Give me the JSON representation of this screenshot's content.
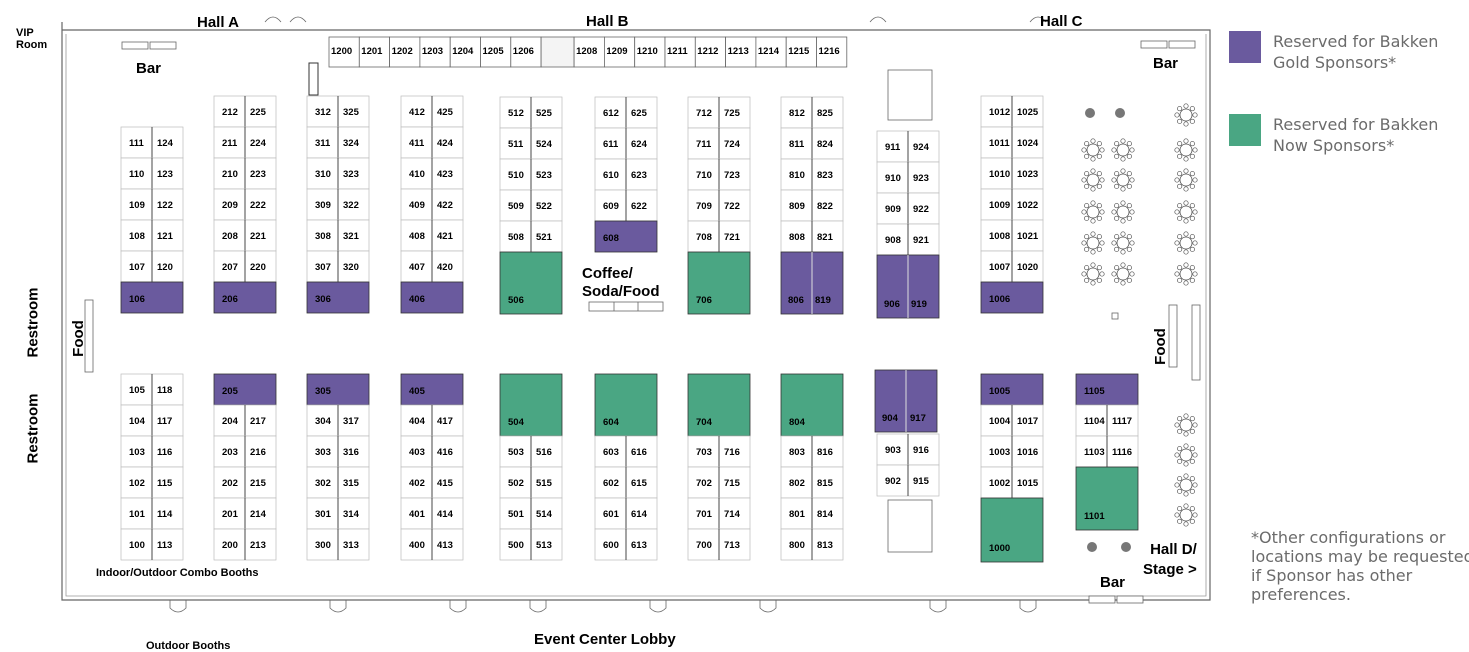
{
  "colors": {
    "gold": "#6a5a9e",
    "now": "#4aa683",
    "booth_fill": "#ffffff",
    "line": "#555555",
    "legend_text": "#6b6b6b"
  },
  "labels": {
    "hall_a": "Hall A",
    "hall_b": "Hall B",
    "hall_c": "Hall C",
    "vip_room": "VIP\nRoom",
    "bar_top_left": "Bar",
    "bar_top_right": "Bar",
    "bar_bottom": "Bar",
    "restroom_upper": "Restroom",
    "restroom_lower": "Restroom",
    "food_left": "Food",
    "food_right": "Food",
    "coffee": "Coffee/\nSoda/Food",
    "combo_booths": "Indoor/Outdoor Combo Booths",
    "outdoor_booths": "Outdoor Booths",
    "lobby": "Event Center Lobby",
    "hall_d": "Hall D/\nStage >"
  },
  "legend": {
    "gold": "Reserved for Bakken Gold Sponsors*",
    "now": "Reserved for Bakken Now Sponsors*",
    "note": "*Other configurations or locations may be requested if Sponsor has other preferences."
  },
  "hall_b_booths": [
    "1200",
    "1201",
    "1202",
    "1203",
    "1204",
    "1205",
    "1206",
    "1208",
    "1209",
    "1210",
    "1211",
    "1212",
    "1213",
    "1214",
    "1215",
    "1216"
  ],
  "booth_columns": [
    {
      "upper": [
        [
          "111",
          "124"
        ],
        [
          "110",
          "123"
        ],
        [
          "109",
          "122"
        ],
        [
          "108",
          "121"
        ],
        [
          "107",
          "120"
        ]
      ],
      "upper_gold": "106",
      "lower_gold_or_pair": [
        "105",
        "118"
      ],
      "lower": [
        [
          "104",
          "117"
        ],
        [
          "103",
          "116"
        ],
        [
          "102",
          "115"
        ],
        [
          "101",
          "114"
        ],
        [
          "100",
          "113"
        ]
      ]
    },
    {
      "upper": [
        [
          "212",
          "225"
        ],
        [
          "211",
          "224"
        ],
        [
          "210",
          "223"
        ],
        [
          "209",
          "222"
        ],
        [
          "208",
          "221"
        ],
        [
          "207",
          "220"
        ]
      ],
      "upper_gold": "206",
      "lower_gold": "205",
      "lower": [
        [
          "204",
          "217"
        ],
        [
          "203",
          "216"
        ],
        [
          "202",
          "215"
        ],
        [
          "201",
          "214"
        ],
        [
          "200",
          "213"
        ]
      ]
    },
    {
      "upper": [
        [
          "312",
          "325"
        ],
        [
          "311",
          "324"
        ],
        [
          "310",
          "323"
        ],
        [
          "309",
          "322"
        ],
        [
          "308",
          "321"
        ],
        [
          "307",
          "320"
        ]
      ],
      "upper_gold": "306",
      "lower_gold": "305",
      "lower": [
        [
          "304",
          "317"
        ],
        [
          "303",
          "316"
        ],
        [
          "302",
          "315"
        ],
        [
          "301",
          "314"
        ],
        [
          "300",
          "313"
        ]
      ]
    },
    {
      "upper": [
        [
          "412",
          "425"
        ],
        [
          "411",
          "424"
        ],
        [
          "410",
          "423"
        ],
        [
          "409",
          "422"
        ],
        [
          "408",
          "421"
        ],
        [
          "407",
          "420"
        ]
      ],
      "upper_gold": "406",
      "lower_gold": "405",
      "lower": [
        [
          "404",
          "417"
        ],
        [
          "403",
          "416"
        ],
        [
          "402",
          "415"
        ],
        [
          "401",
          "414"
        ],
        [
          "400",
          "413"
        ]
      ]
    },
    {
      "upper": [
        [
          "512",
          "525"
        ],
        [
          "511",
          "524"
        ],
        [
          "510",
          "523"
        ],
        [
          "509",
          "522"
        ],
        [
          "508",
          "521"
        ]
      ],
      "upper_now": "506",
      "lower_now": "504",
      "lower": [
        [
          "503",
          "516"
        ],
        [
          "502",
          "515"
        ],
        [
          "501",
          "514"
        ],
        [
          "500",
          "513"
        ]
      ]
    },
    {
      "upper": [
        [
          "612",
          "625"
        ],
        [
          "611",
          "624"
        ],
        [
          "610",
          "623"
        ],
        [
          "609",
          "622"
        ]
      ],
      "upper_gold": "608",
      "lower_now": "604",
      "lower": [
        [
          "603",
          "616"
        ],
        [
          "602",
          "615"
        ],
        [
          "601",
          "614"
        ],
        [
          "600",
          "613"
        ]
      ]
    },
    {
      "upper": [
        [
          "712",
          "725"
        ],
        [
          "711",
          "724"
        ],
        [
          "710",
          "723"
        ],
        [
          "709",
          "722"
        ],
        [
          "708",
          "721"
        ]
      ],
      "upper_now": "706",
      "lower_now": "704",
      "lower": [
        [
          "703",
          "716"
        ],
        [
          "702",
          "715"
        ],
        [
          "701",
          "714"
        ],
        [
          "700",
          "713"
        ]
      ]
    },
    {
      "upper": [
        [
          "812",
          "825"
        ],
        [
          "811",
          "824"
        ],
        [
          "810",
          "823"
        ],
        [
          "809",
          "822"
        ],
        [
          "808",
          "821"
        ]
      ],
      "upper_gold_pair": [
        "806",
        "819"
      ],
      "lower_now": "804",
      "lower": [
        [
          "803",
          "816"
        ],
        [
          "802",
          "815"
        ],
        [
          "801",
          "814"
        ],
        [
          "800",
          "813"
        ]
      ]
    },
    {
      "upper": [
        [
          "911",
          "924"
        ],
        [
          "910",
          "923"
        ],
        [
          "909",
          "922"
        ],
        [
          "908",
          "921"
        ]
      ],
      "upper_gold_pair": [
        "906",
        "919"
      ],
      "lower_gold_pair": [
        "904",
        "917"
      ],
      "lower": [
        [
          "903",
          "916"
        ],
        [
          "902",
          "915"
        ]
      ]
    },
    {
      "upper": [
        [
          "1012",
          "1025"
        ],
        [
          "1011",
          "1024"
        ],
        [
          "1010",
          "1023"
        ],
        [
          "1009",
          "1022"
        ],
        [
          "1008",
          "1021"
        ],
        [
          "1007",
          "1020"
        ]
      ],
      "upper_gold": "1006",
      "lower_gold": "1005",
      "lower": [
        [
          "1004",
          "1017"
        ],
        [
          "1003",
          "1016"
        ],
        [
          "1002",
          "1015"
        ]
      ],
      "lower_now": "1000"
    },
    {
      "lower_gold": "1105",
      "lower": [
        [
          "1104",
          "1117"
        ],
        [
          "1103",
          "1116"
        ]
      ],
      "lower_now": "1101"
    }
  ]
}
